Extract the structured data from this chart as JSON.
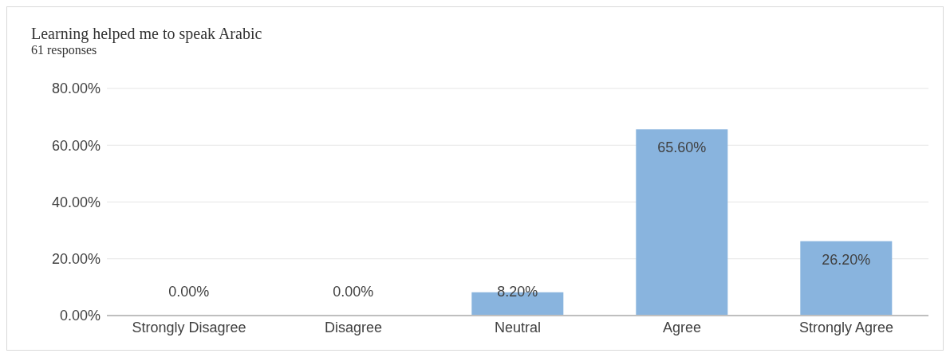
{
  "chart_data": {
    "type": "bar",
    "title": "Learning helped me to speak Arabic",
    "subtitle": "61 responses",
    "categories": [
      "Strongly  Disagree",
      "Disagree",
      "Neutral",
      "Agree",
      "Strongly  Agree"
    ],
    "values": [
      0,
      0,
      8.2,
      65.6,
      26.2
    ],
    "value_labels": [
      "0.00%",
      "0.00%",
      "8.20%",
      "65.60%",
      "26.20%"
    ],
    "color": "#89b4de",
    "ylim": [
      0,
      80
    ],
    "yticks": [
      {
        "value": 0,
        "label": "0.00%"
      },
      {
        "value": 20,
        "label": "20.00%"
      },
      {
        "value": 40,
        "label": "40.00%"
      },
      {
        "value": 60,
        "label": "60.00%"
      },
      {
        "value": 80,
        "label": "80.00%"
      }
    ],
    "grid": "y",
    "legend": false
  }
}
